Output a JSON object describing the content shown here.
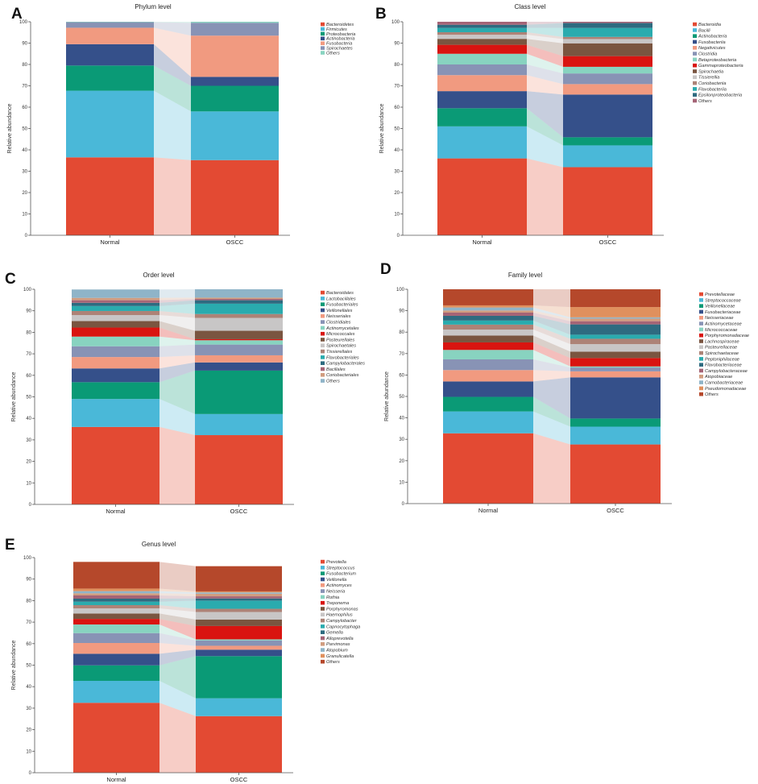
{
  "palette": [
    "#e34a33",
    "#4ab8d8",
    "#0a9a76",
    "#35508a",
    "#f19a80",
    "#8893b5",
    "#88d3c0",
    "#d91410",
    "#7a5540",
    "#c8c6c6",
    "#ad8377",
    "#2aabae",
    "#2e6b80",
    "#a56476",
    "#d19d80",
    "#8fb4c8",
    "#e0905d",
    "#b5482b",
    "#b35a3c"
  ],
  "chart_data": [
    {
      "id": "A",
      "type": "bar",
      "stacked": true,
      "title": "Phylum level",
      "xlabel": "",
      "ylabel": "Relative abundance",
      "ylim": [
        0,
        100
      ],
      "yticks": [
        0,
        10,
        20,
        30,
        40,
        50,
        60,
        70,
        80,
        90,
        100
      ],
      "categories": [
        "Normal",
        "OSCC"
      ],
      "series": [
        {
          "name": "Bacteroidetes",
          "values": [
            36.5,
            35.2
          ]
        },
        {
          "name": "Firmicutes",
          "values": [
            31.2,
            22.8
          ]
        },
        {
          "name": "Proteobacteria",
          "values": [
            11.8,
            12.0
          ]
        },
        {
          "name": "Actinobacteria",
          "values": [
            10.0,
            4.2
          ]
        },
        {
          "name": "Fusobacteria",
          "values": [
            7.7,
            19.3
          ]
        },
        {
          "name": "Spirochaetes",
          "values": [
            2.6,
            6.0
          ]
        },
        {
          "name": "Others",
          "values": [
            0.2,
            0.5
          ]
        }
      ]
    },
    {
      "id": "B",
      "type": "bar",
      "stacked": true,
      "title": "Class level",
      "xlabel": "",
      "ylabel": "Relative abundance",
      "ylim": [
        0,
        100
      ],
      "yticks": [
        0,
        10,
        20,
        30,
        40,
        50,
        60,
        70,
        80,
        90,
        100
      ],
      "categories": [
        "Normal",
        "OSCC"
      ],
      "series": [
        {
          "name": "Bacteroidia",
          "values": [
            36.0,
            31.9
          ]
        },
        {
          "name": "Bacilli",
          "values": [
            15.0,
            10.2
          ]
        },
        {
          "name": "Actinobacteria",
          "values": [
            8.5,
            3.8
          ]
        },
        {
          "name": "Fusobacteriia",
          "values": [
            8.0,
            20.0
          ]
        },
        {
          "name": "Negativicutes",
          "values": [
            7.5,
            4.9
          ]
        },
        {
          "name": "Clostridia",
          "values": [
            5.0,
            5.0
          ]
        },
        {
          "name": "Betaproteobacteria",
          "values": [
            5.0,
            3.1
          ]
        },
        {
          "name": "Gammaproteobacteria",
          "values": [
            4.2,
            5.0
          ]
        },
        {
          "name": "Spirochaetia",
          "values": [
            2.8,
            6.0
          ]
        },
        {
          "name": "Tissierellia",
          "values": [
            1.9,
            2.0
          ]
        },
        {
          "name": "Coriobacteriia",
          "values": [
            1.2,
            1.0
          ]
        },
        {
          "name": "Flavobacteriia",
          "values": [
            2.0,
            4.2
          ]
        },
        {
          "name": "Epsilonproteobacteria",
          "values": [
            1.5,
            2.3
          ]
        },
        {
          "name": "Others",
          "values": [
            1.4,
            0.6
          ]
        }
      ]
    },
    {
      "id": "C",
      "type": "bar",
      "stacked": true,
      "title": "Order level",
      "xlabel": "",
      "ylabel": "Relative abundance",
      "ylim": [
        0,
        100
      ],
      "yticks": [
        0,
        10,
        20,
        30,
        40,
        50,
        60,
        70,
        80,
        90,
        100
      ],
      "categories": [
        "Normal",
        "OSCC"
      ],
      "series": [
        {
          "name": "Bacteroidales",
          "values": [
            36.0,
            32.2
          ]
        },
        {
          "name": "Lactobacillales",
          "values": [
            13.0,
            9.8
          ]
        },
        {
          "name": "Fusobacteriales",
          "values": [
            7.8,
            20.2
          ]
        },
        {
          "name": "Veillonellales",
          "values": [
            6.4,
            3.8
          ]
        },
        {
          "name": "Neisseriales",
          "values": [
            5.3,
            3.3
          ]
        },
        {
          "name": "Clostridiales",
          "values": [
            5.0,
            5.0
          ]
        },
        {
          "name": "Actinomycetales",
          "values": [
            4.5,
            2.0
          ]
        },
        {
          "name": "Micrococcales",
          "values": [
            4.2,
            0.5
          ]
        },
        {
          "name": "Pasteurellales",
          "values": [
            3.0,
            3.9
          ]
        },
        {
          "name": "Spirochaetales",
          "values": [
            2.8,
            6.0
          ]
        },
        {
          "name": "Tissierellales",
          "values": [
            1.9,
            1.8
          ]
        },
        {
          "name": "Flavobacteriales",
          "values": [
            2.3,
            4.8
          ]
        },
        {
          "name": "Campylobacterales",
          "values": [
            1.5,
            1.6
          ]
        },
        {
          "name": "Bacillales",
          "values": [
            1.2,
            0.6
          ]
        },
        {
          "name": "Coriobacteriales",
          "values": [
            1.1,
            0.6
          ]
        },
        {
          "name": "Others",
          "values": [
            3.9,
            3.9
          ]
        }
      ]
    },
    {
      "id": "D",
      "type": "bar",
      "stacked": true,
      "title": "Family level",
      "xlabel": "",
      "ylabel": "Relative abundance",
      "ylim": [
        0,
        100
      ],
      "yticks": [
        0,
        10,
        20,
        30,
        40,
        50,
        60,
        70,
        80,
        90,
        100
      ],
      "categories": [
        "Normal",
        "OSCC"
      ],
      "series": [
        {
          "name": "Prevotellaceae",
          "values": [
            32.8,
            27.6
          ]
        },
        {
          "name": "Streptococcaceae",
          "values": [
            10.2,
            8.3
          ]
        },
        {
          "name": "Veillonellaceae",
          "values": [
            6.8,
            3.8
          ]
        },
        {
          "name": "Fusobacteriaceae",
          "values": [
            7.2,
            19.2
          ]
        },
        {
          "name": "Neisseriaceae",
          "values": [
            5.3,
            2.8
          ]
        },
        {
          "name": "Actinomycetaceae",
          "values": [
            5.0,
            1.8
          ]
        },
        {
          "name": "Micrococcaceae",
          "values": [
            4.4,
            0.5
          ]
        },
        {
          "name": "Porphyromonadaceae",
          "values": [
            3.5,
            3.9
          ]
        },
        {
          "name": "Lachnospiraceae",
          "values": [
            3.2,
            3.0
          ]
        },
        {
          "name": "Pasteurellaceae",
          "values": [
            2.8,
            3.5
          ]
        },
        {
          "name": "Spirochaetaceae",
          "values": [
            2.3,
            2.5
          ]
        },
        {
          "name": "Peptoniphilaceae",
          "values": [
            1.9,
            1.9
          ]
        },
        {
          "name": "Flavobacteriaceae",
          "values": [
            2.2,
            4.8
          ]
        },
        {
          "name": "Campylobacteraceae",
          "values": [
            1.5,
            1.5
          ]
        },
        {
          "name": "Atopobiaceae",
          "values": [
            1.0,
            1.2
          ]
        },
        {
          "name": "Carnobacteriaceae",
          "values": [
            1.4,
            0.6
          ]
        },
        {
          "name": "Pseudomonadaceae",
          "values": [
            1.0,
            4.8
          ]
        },
        {
          "name": "Others",
          "values": [
            7.5,
            8.3
          ]
        }
      ]
    },
    {
      "id": "E",
      "type": "bar",
      "stacked": true,
      "title": "Genus level",
      "xlabel": "",
      "ylabel": "Relative abundance",
      "ylim": [
        0,
        100
      ],
      "yticks": [
        0,
        10,
        20,
        30,
        40,
        50,
        60,
        70,
        80,
        90,
        100
      ],
      "categories": [
        "Normal",
        "OSCC"
      ],
      "series": [
        {
          "name": "Prevotella",
          "values": [
            32.5,
            26.3
          ]
        },
        {
          "name": "Streptococcus",
          "values": [
            10.2,
            8.3
          ]
        },
        {
          "name": "Fusobacterium",
          "values": [
            7.2,
            19.6
          ]
        },
        {
          "name": "Veillonella",
          "values": [
            5.4,
            3.0
          ]
        },
        {
          "name": "Actinomyces",
          "values": [
            5.0,
            1.8
          ]
        },
        {
          "name": "Neisseria",
          "values": [
            4.6,
            2.5
          ]
        },
        {
          "name": "Rothia",
          "values": [
            4.0,
            0.5
          ]
        },
        {
          "name": "Treponema",
          "values": [
            2.6,
            6.2
          ]
        },
        {
          "name": "Porphyromonas",
          "values": [
            2.5,
            3.0
          ]
        },
        {
          "name": "Haemophilus",
          "values": [
            2.4,
            3.5
          ]
        },
        {
          "name": "Campylobacter",
          "values": [
            1.5,
            1.5
          ]
        },
        {
          "name": "Capnocytophaga",
          "values": [
            1.6,
            3.8
          ]
        },
        {
          "name": "Gemella",
          "values": [
            1.4,
            1.0
          ]
        },
        {
          "name": "Alloprevotella",
          "values": [
            1.5,
            1.0
          ]
        },
        {
          "name": "Parvimonas",
          "values": [
            1.0,
            1.2
          ]
        },
        {
          "name": "Atopobium",
          "values": [
            1.0,
            0.6
          ]
        },
        {
          "name": "Granulicatella",
          "values": [
            1.2,
            0.5
          ]
        },
        {
          "name": "Others",
          "values": [
            12.4,
            11.7
          ]
        }
      ]
    }
  ]
}
